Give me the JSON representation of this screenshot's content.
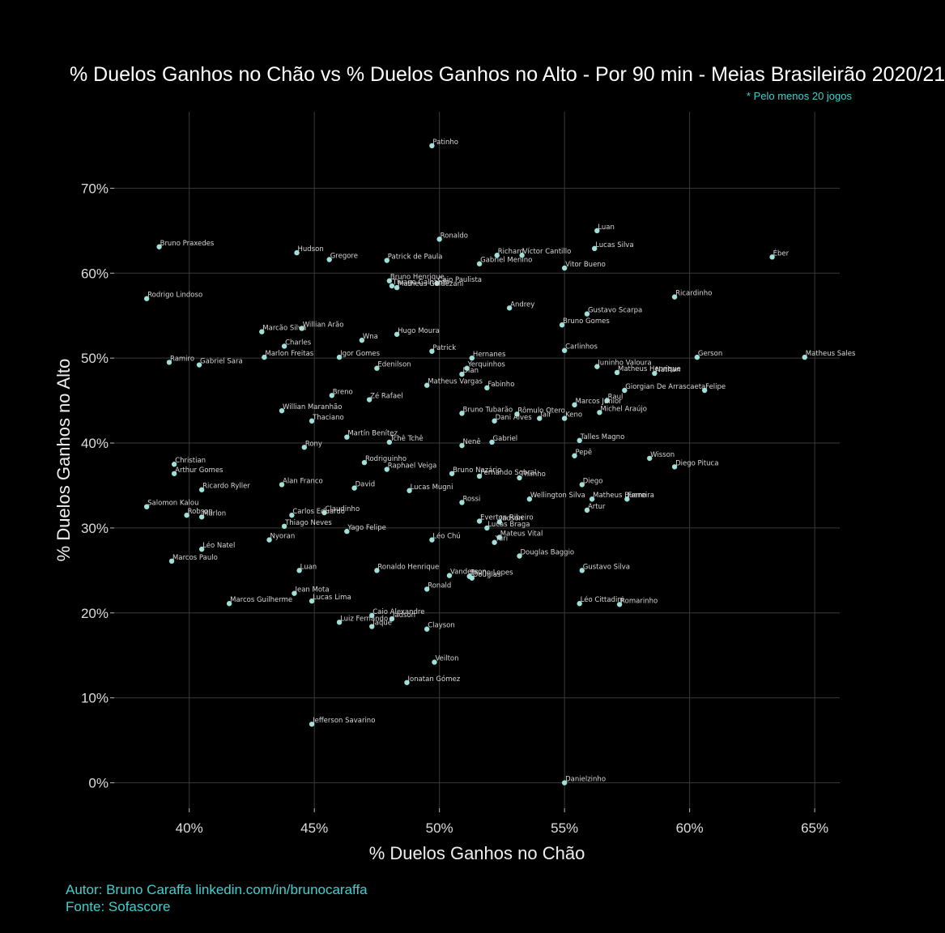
{
  "header": {
    "title": "% Duelos Ganhos no Chão vs % Duelos Ganhos no Alto - Por 90 min - Meias Brasileirão 2020/21",
    "subtitle": "* Pelo menos 20 jogos"
  },
  "footer": {
    "author": "Autor: Bruno Caraffa linkedin.com/in/brunocaraffa",
    "source": "Fonte: Sofascore"
  },
  "colors": {
    "background": "#000000",
    "point": "#9fe0d8",
    "grid": "#3a3a3a",
    "accent": "#3fd0d0"
  },
  "chart_data": {
    "type": "scatter",
    "title": "% Duelos Ganhos no Chão vs % Duelos Ganhos no Alto - Por 90 min - Meias Brasileirão 2020/21",
    "xlabel": "% Duelos Ganhos no Chão",
    "ylabel": "% Duelos Ganhos no Alto",
    "xlim": [
      37,
      66
    ],
    "ylim": [
      -3,
      79
    ],
    "xticks": [
      40,
      45,
      50,
      55,
      60,
      65
    ],
    "xtick_labels": [
      "40%",
      "45%",
      "50%",
      "55%",
      "60%",
      "65%"
    ],
    "yticks": [
      0,
      10,
      20,
      30,
      40,
      50,
      60,
      70
    ],
    "ytick_labels": [
      "0%",
      "10%",
      "20%",
      "30%",
      "40%",
      "50%",
      "60%",
      "70%"
    ],
    "grid": true,
    "points": [
      {
        "name": "Patinho",
        "x": 49.7,
        "y": 75.0
      },
      {
        "name": "Luan",
        "x": 56.3,
        "y": 65.0
      },
      {
        "name": "Ronaldo",
        "x": 50.0,
        "y": 64.0
      },
      {
        "name": "Bruno Praxedes",
        "x": 38.8,
        "y": 63.1
      },
      {
        "name": "Lucas Silva",
        "x": 56.2,
        "y": 62.9
      },
      {
        "name": "Hudson",
        "x": 44.3,
        "y": 62.4
      },
      {
        "name": "Richard",
        "x": 52.3,
        "y": 62.1
      },
      {
        "name": "Víctor Cantillo",
        "x": 53.3,
        "y": 62.1
      },
      {
        "name": "Éber",
        "x": 63.3,
        "y": 61.9
      },
      {
        "name": "Gregore",
        "x": 45.6,
        "y": 61.6
      },
      {
        "name": "Patrick de Paula",
        "x": 47.9,
        "y": 61.5
      },
      {
        "name": "Gabriel Menino",
        "x": 51.6,
        "y": 61.1
      },
      {
        "name": "Vitor Bueno",
        "x": 55.0,
        "y": 60.6
      },
      {
        "name": "Bruno Henrique",
        "x": 48.0,
        "y": 59.1
      },
      {
        "name": "Caio Paulista",
        "x": 49.9,
        "y": 58.8
      },
      {
        "name": "Thiago Galhardo",
        "x": 48.1,
        "y": 58.5
      },
      {
        "name": "Matheus Galdezani",
        "x": 48.3,
        "y": 58.3
      },
      {
        "name": "Rodrigo Lindoso",
        "x": 38.3,
        "y": 57.0
      },
      {
        "name": "Ricardinho",
        "x": 59.4,
        "y": 57.2
      },
      {
        "name": "Andrey",
        "x": 52.8,
        "y": 55.9
      },
      {
        "name": "Gustavo Scarpa",
        "x": 55.9,
        "y": 55.2
      },
      {
        "name": "Bruno Gomes",
        "x": 54.9,
        "y": 53.9
      },
      {
        "name": "Willian Arão",
        "x": 44.5,
        "y": 53.5
      },
      {
        "name": "Marcão Silva",
        "x": 42.9,
        "y": 53.1
      },
      {
        "name": "Hugo Moura",
        "x": 48.3,
        "y": 52.8
      },
      {
        "name": "Wna",
        "x": 46.9,
        "y": 52.1
      },
      {
        "name": "Charles",
        "x": 43.8,
        "y": 51.4
      },
      {
        "name": "Patrick",
        "x": 49.7,
        "y": 50.8
      },
      {
        "name": "Carlinhos",
        "x": 55.0,
        "y": 50.9
      },
      {
        "name": "Marlon Freitas",
        "x": 43.0,
        "y": 50.1
      },
      {
        "name": "Igor Gomes",
        "x": 46.0,
        "y": 50.1
      },
      {
        "name": "Hernanes",
        "x": 51.3,
        "y": 50.0
      },
      {
        "name": "Gerson",
        "x": 60.3,
        "y": 50.1
      },
      {
        "name": "Matheus Sales",
        "x": 64.6,
        "y": 50.1
      },
      {
        "name": "Ramiro",
        "x": 39.2,
        "y": 49.5
      },
      {
        "name": "Gabriel Sara",
        "x": 40.4,
        "y": 49.2
      },
      {
        "name": "Juninho Valoura",
        "x": 56.3,
        "y": 49.0
      },
      {
        "name": "Edenilson",
        "x": 47.5,
        "y": 48.8
      },
      {
        "name": "Yerquinhos",
        "x": 51.1,
        "y": 48.8
      },
      {
        "name": "Matheus Henrique",
        "x": 57.1,
        "y": 48.3
      },
      {
        "name": "Nathan",
        "x": 58.6,
        "y": 48.2
      },
      {
        "name": "Dian",
        "x": 50.9,
        "y": 48.1
      },
      {
        "name": "Matheus Vargas",
        "x": 49.5,
        "y": 46.8
      },
      {
        "name": "Fabinho",
        "x": 51.9,
        "y": 46.5
      },
      {
        "name": "Giorgian De Arrascaeta",
        "x": 57.4,
        "y": 46.2
      },
      {
        "name": "Felipe",
        "x": 60.6,
        "y": 46.2
      },
      {
        "name": "Breno",
        "x": 45.7,
        "y": 45.6
      },
      {
        "name": "Zé Rafael",
        "x": 47.2,
        "y": 45.1
      },
      {
        "name": "Raul",
        "x": 56.7,
        "y": 45.0
      },
      {
        "name": "Marcos Júnior",
        "x": 55.4,
        "y": 44.5
      },
      {
        "name": "Willian Maranhão",
        "x": 43.7,
        "y": 43.8
      },
      {
        "name": "Michel Araújo",
        "x": 56.4,
        "y": 43.6
      },
      {
        "name": "Bruno Tubarão",
        "x": 50.9,
        "y": 43.5
      },
      {
        "name": "Rômulo Otero",
        "x": 53.1,
        "y": 43.4
      },
      {
        "name": "Jair",
        "x": 54.0,
        "y": 42.9
      },
      {
        "name": "Keno",
        "x": 55.0,
        "y": 42.9
      },
      {
        "name": "Dani Alves",
        "x": 52.2,
        "y": 42.6
      },
      {
        "name": "Thaciano",
        "x": 44.9,
        "y": 42.6
      },
      {
        "name": "Martín Benítez",
        "x": 46.3,
        "y": 40.7
      },
      {
        "name": "Talles Magno",
        "x": 55.6,
        "y": 40.3
      },
      {
        "name": "Tchê Tchê",
        "x": 48.0,
        "y": 40.1
      },
      {
        "name": "Gabriel",
        "x": 52.1,
        "y": 40.1
      },
      {
        "name": "Nenê",
        "x": 50.9,
        "y": 39.7
      },
      {
        "name": "Rony",
        "x": 44.6,
        "y": 39.5
      },
      {
        "name": "Pepê",
        "x": 55.4,
        "y": 38.5
      },
      {
        "name": "Wisson",
        "x": 58.4,
        "y": 38.2
      },
      {
        "name": "Rodriguinho",
        "x": 47.0,
        "y": 37.7
      },
      {
        "name": "Christian",
        "x": 39.4,
        "y": 37.5
      },
      {
        "name": "Diego Pituca",
        "x": 59.4,
        "y": 37.2
      },
      {
        "name": "Raphael Veiga",
        "x": 47.9,
        "y": 36.9
      },
      {
        "name": "Arthur Gomes",
        "x": 39.4,
        "y": 36.4
      },
      {
        "name": "Bruno Nazário",
        "x": 50.5,
        "y": 36.4
      },
      {
        "name": "Fernando Sobral",
        "x": 51.6,
        "y": 36.1
      },
      {
        "name": "Thiinho",
        "x": 53.2,
        "y": 35.9
      },
      {
        "name": "Diego",
        "x": 55.7,
        "y": 35.1
      },
      {
        "name": "Alan Franco",
        "x": 43.7,
        "y": 35.1
      },
      {
        "name": "David",
        "x": 46.6,
        "y": 34.7
      },
      {
        "name": "Ricardo Ryller",
        "x": 40.5,
        "y": 34.5
      },
      {
        "name": "Lucas Mugni",
        "x": 48.8,
        "y": 34.4
      },
      {
        "name": "Wellington Silva",
        "x": 53.6,
        "y": 33.4
      },
      {
        "name": "Matheus Bueno",
        "x": 56.1,
        "y": 33.4
      },
      {
        "name": "Ferreira",
        "x": 57.5,
        "y": 33.4
      },
      {
        "name": "Rossi",
        "x": 50.9,
        "y": 33.0
      },
      {
        "name": "Salomon Kalou",
        "x": 38.3,
        "y": 32.5
      },
      {
        "name": "Artur",
        "x": 55.9,
        "y": 32.1
      },
      {
        "name": "Claudinho",
        "x": 45.4,
        "y": 31.8
      },
      {
        "name": "Carlos Eduardo",
        "x": 44.1,
        "y": 31.5
      },
      {
        "name": "Robson",
        "x": 39.9,
        "y": 31.5
      },
      {
        "name": "Marlon",
        "x": 40.5,
        "y": 31.3
      },
      {
        "name": "Everton Ribeiro",
        "x": 51.6,
        "y": 30.8
      },
      {
        "name": "Jadson",
        "x": 52.4,
        "y": 30.7
      },
      {
        "name": "Thiago Neves",
        "x": 43.8,
        "y": 30.2
      },
      {
        "name": "Lucas Braga",
        "x": 51.9,
        "y": 30.0
      },
      {
        "name": "Yago Felipe",
        "x": 46.3,
        "y": 29.6
      },
      {
        "name": "Mateus Vital",
        "x": 52.4,
        "y": 28.9
      },
      {
        "name": "Léo Chú",
        "x": 49.7,
        "y": 28.6
      },
      {
        "name": "Yuri",
        "x": 52.2,
        "y": 28.3
      },
      {
        "name": "Nyoran",
        "x": 43.2,
        "y": 28.6
      },
      {
        "name": "Léo Natel",
        "x": 40.5,
        "y": 27.5
      },
      {
        "name": "Douglas Baggio",
        "x": 53.2,
        "y": 26.7
      },
      {
        "name": "Marcos Paulo",
        "x": 39.3,
        "y": 26.1
      },
      {
        "name": "Luan",
        "x": 44.4,
        "y": 25.0
      },
      {
        "name": "Ronaldo Henrique",
        "x": 47.5,
        "y": 25.0
      },
      {
        "name": "Gustavo Silva",
        "x": 55.7,
        "y": 25.0
      },
      {
        "name": "Vanderson",
        "x": 50.4,
        "y": 24.4
      },
      {
        "name": "Bruno Lopes",
        "x": 51.2,
        "y": 24.3
      },
      {
        "name": "Douglas",
        "x": 51.3,
        "y": 24.1
      },
      {
        "name": "Ronald",
        "x": 49.5,
        "y": 22.8
      },
      {
        "name": "Jean Mota",
        "x": 44.2,
        "y": 22.3
      },
      {
        "name": "Lucas Lima",
        "x": 44.9,
        "y": 21.4
      },
      {
        "name": "Marcos Guilherme",
        "x": 41.6,
        "y": 21.1
      },
      {
        "name": "Léo Cittadini",
        "x": 55.6,
        "y": 21.1
      },
      {
        "name": "Romarinho",
        "x": 57.2,
        "y": 21.0
      },
      {
        "name": "Caio Alexandre",
        "x": 47.3,
        "y": 19.7
      },
      {
        "name": "Jadson",
        "x": 48.1,
        "y": 19.3
      },
      {
        "name": "Luiz Fernando",
        "x": 46.0,
        "y": 18.9
      },
      {
        "name": "Jaque",
        "x": 47.3,
        "y": 18.4
      },
      {
        "name": "Clayson",
        "x": 49.5,
        "y": 18.1
      },
      {
        "name": "Veilton",
        "x": 49.8,
        "y": 14.2
      },
      {
        "name": "Jonatan Gómez",
        "x": 48.7,
        "y": 11.8
      },
      {
        "name": "Jefferson Savarino",
        "x": 44.9,
        "y": 6.9
      },
      {
        "name": "Danielzinho",
        "x": 55.0,
        "y": 0.0
      }
    ]
  }
}
